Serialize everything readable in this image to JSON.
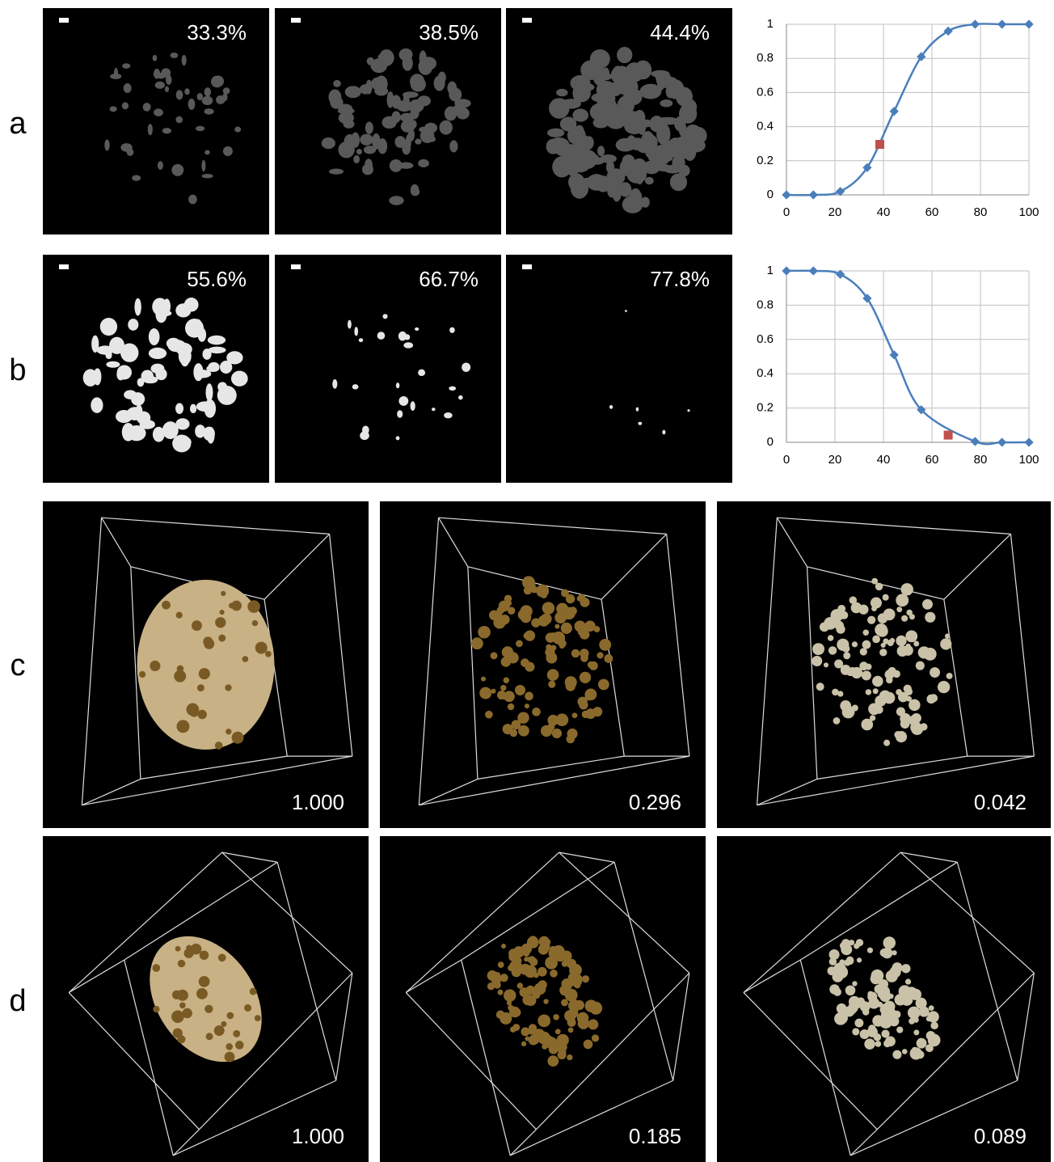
{
  "panel_labels": [
    "a",
    "b",
    "c",
    "d"
  ],
  "row_a": {
    "percentages": [
      "33.3%",
      "38.5%",
      "44.4%"
    ]
  },
  "row_b": {
    "percentages": [
      "55.6%",
      "66.7%",
      "77.8%"
    ]
  },
  "row_c": {
    "values": [
      "1.000",
      "0.296",
      "0.042"
    ]
  },
  "row_d": {
    "values": [
      "1.000",
      "0.185",
      "0.089"
    ]
  },
  "chart_data": [
    {
      "type": "line",
      "x": [
        0,
        11.1,
        22.2,
        33.3,
        44.4,
        55.6,
        66.7,
        77.8,
        88.9,
        100
      ],
      "values": [
        0,
        0,
        0.02,
        0.16,
        0.49,
        0.81,
        0.96,
        1.0,
        1.0,
        1.0
      ],
      "color": "#4a7ebb",
      "highlight_x": 38.5,
      "highlight_value": 0.296,
      "highlight_color": "#c0504d",
      "xlim": [
        0,
        100
      ],
      "xticks": [
        0,
        20,
        40,
        60,
        80,
        100
      ],
      "ylim": [
        0,
        1
      ],
      "yticks": [
        0,
        0.2,
        0.4,
        0.6,
        0.8,
        1
      ],
      "grid": true
    },
    {
      "type": "line",
      "x": [
        0,
        11.1,
        22.2,
        33.3,
        44.4,
        55.6,
        77.8,
        88.9,
        100
      ],
      "values": [
        1,
        1,
        0.98,
        0.84,
        0.51,
        0.19,
        0.005,
        0,
        0
      ],
      "color": "#4a7ebb",
      "highlight_x": 66.7,
      "highlight_value": 0.042,
      "highlight_color": "#c0504d",
      "xlim": [
        0,
        100
      ],
      "xticks": [
        0,
        20,
        40,
        60,
        80,
        100
      ],
      "ylim": [
        0,
        1
      ],
      "yticks": [
        0,
        0.2,
        0.4,
        0.6,
        0.8,
        1
      ],
      "grid": true
    }
  ]
}
